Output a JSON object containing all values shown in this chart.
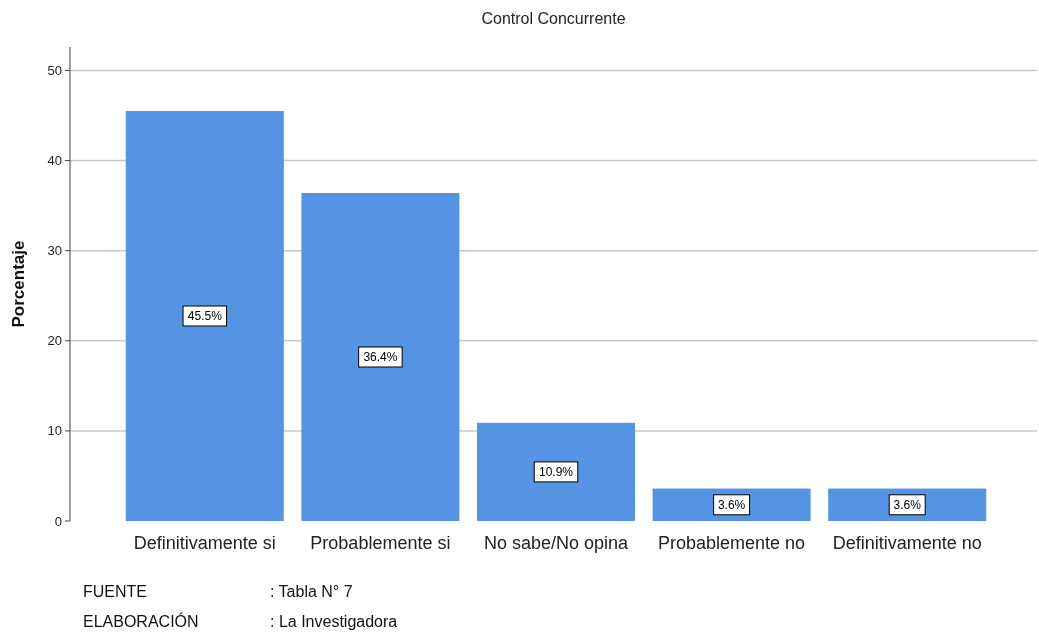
{
  "chart_data": {
    "type": "bar",
    "title": "Control Concurrente",
    "ylabel": "Porcentaje",
    "categories": [
      "Definitivamente si",
      "Probablemente si",
      "No sabe/No opina",
      "Probablemente no",
      "Definitivamente no"
    ],
    "values": [
      45.5,
      36.4,
      10.9,
      3.6,
      3.6
    ],
    "value_labels": [
      "45.5%",
      "36.4%",
      "10.9%",
      "3.6%",
      "3.6%"
    ],
    "color": "#5594e3",
    "ylim": [
      0,
      52.6
    ],
    "yticks": [
      0,
      10,
      20,
      30,
      40,
      50
    ],
    "grid": "y",
    "annotations": [
      "FUENTE : Tabla N° 7",
      "ELABORACIÓN : La Investigadora"
    ]
  }
}
